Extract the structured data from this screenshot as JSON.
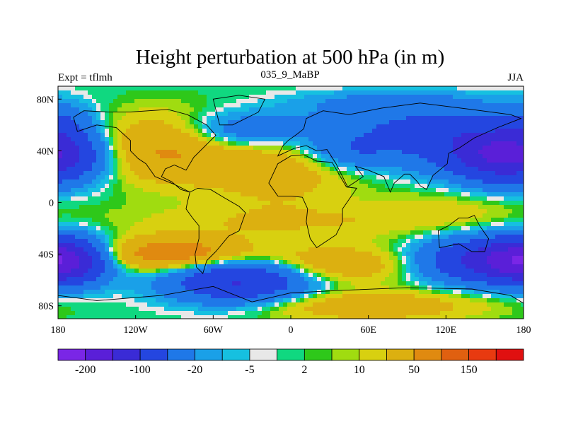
{
  "chart_data": {
    "type": "heatmap",
    "title": "Height perturbation at 500 hPa (in m)",
    "subtitle_left": "Expt = tflmh",
    "subtitle_center": "035_9_MaBP",
    "subtitle_right": "JJA",
    "x_range": [
      -180,
      180
    ],
    "y_range": [
      -90,
      90
    ],
    "x_ticks": [
      {
        "value": -180,
        "label": "180"
      },
      {
        "value": -120,
        "label": "120W"
      },
      {
        "value": -60,
        "label": "60W"
      },
      {
        "value": 0,
        "label": "0"
      },
      {
        "value": 60,
        "label": "60E"
      },
      {
        "value": 120,
        "label": "120E"
      },
      {
        "value": 180,
        "label": "180"
      }
    ],
    "y_ticks": [
      {
        "value": 80,
        "label": "80N"
      },
      {
        "value": 40,
        "label": "40N"
      },
      {
        "value": 0,
        "label": "0"
      },
      {
        "value": -40,
        "label": "40S"
      },
      {
        "value": -80,
        "label": "80S"
      }
    ],
    "levels": [
      -200,
      -150,
      -100,
      -50,
      -20,
      -10,
      -5,
      -2,
      2,
      5,
      10,
      20,
      50,
      100,
      150,
      200
    ],
    "colorbar": {
      "colors": [
        "#7a26e6",
        "#5a1fd8",
        "#3a2bd6",
        "#2446e0",
        "#1f78e8",
        "#1aa0e8",
        "#16c0e0",
        "#e8e8e8",
        "#10d880",
        "#2ec81a",
        "#a0dc10",
        "#d8d010",
        "#dcb010",
        "#e08a10",
        "#e06010",
        "#e83a10",
        "#e01010"
      ],
      "labels": [
        {
          "level": -200,
          "text": "-200"
        },
        {
          "level": -100,
          "text": "-100"
        },
        {
          "level": -20,
          "text": "-20"
        },
        {
          "level": -5,
          "text": "-5"
        },
        {
          "level": 2,
          "text": "2"
        },
        {
          "level": 10,
          "text": "10"
        },
        {
          "level": 50,
          "text": "50"
        },
        {
          "level": 150,
          "text": "150"
        }
      ]
    },
    "features": [
      {
        "lon": 170,
        "lat": 35,
        "amp": -140,
        "slon": 30,
        "slat": 14
      },
      {
        "lon": 130,
        "lat": 45,
        "amp": -60,
        "slon": 45,
        "slat": 14
      },
      {
        "lon": 45,
        "lat": 40,
        "amp": -45,
        "slon": 25,
        "slat": 10
      },
      {
        "lon": -40,
        "lat": 55,
        "amp": -45,
        "slon": 35,
        "slat": 10
      },
      {
        "lon": 90,
        "lat": 62,
        "amp": -35,
        "slon": 60,
        "slat": 10
      },
      {
        "lon": -175,
        "lat": 60,
        "amp": -30,
        "slon": 15,
        "slat": 12
      },
      {
        "lon": -100,
        "lat": 42,
        "amp": 55,
        "slon": 40,
        "slat": 18
      },
      {
        "lon": -10,
        "lat": 25,
        "amp": 35,
        "slon": 40,
        "slat": 18
      },
      {
        "lon": 80,
        "lat": 78,
        "amp": -25,
        "slon": 50,
        "slat": 6
      },
      {
        "lon": -40,
        "lat": -60,
        "amp": -110,
        "slon": 38,
        "slat": 12
      },
      {
        "lon": -175,
        "lat": -45,
        "amp": -140,
        "slon": 22,
        "slat": 12
      },
      {
        "lon": 150,
        "lat": -45,
        "amp": -110,
        "slon": 35,
        "slat": 12
      },
      {
        "lon": -90,
        "lat": -40,
        "amp": 80,
        "slon": 40,
        "slat": 9
      },
      {
        "lon": 30,
        "lat": -48,
        "amp": 45,
        "slon": 45,
        "slat": 10
      },
      {
        "lon": 60,
        "lat": -80,
        "amp": 40,
        "slon": 60,
        "slat": 8
      },
      {
        "lon": 0,
        "lat": -15,
        "amp": 20,
        "slon": 90,
        "slat": 10
      },
      {
        "lon": 120,
        "lat": -5,
        "amp": 12,
        "slon": 40,
        "slat": 10
      }
    ]
  }
}
